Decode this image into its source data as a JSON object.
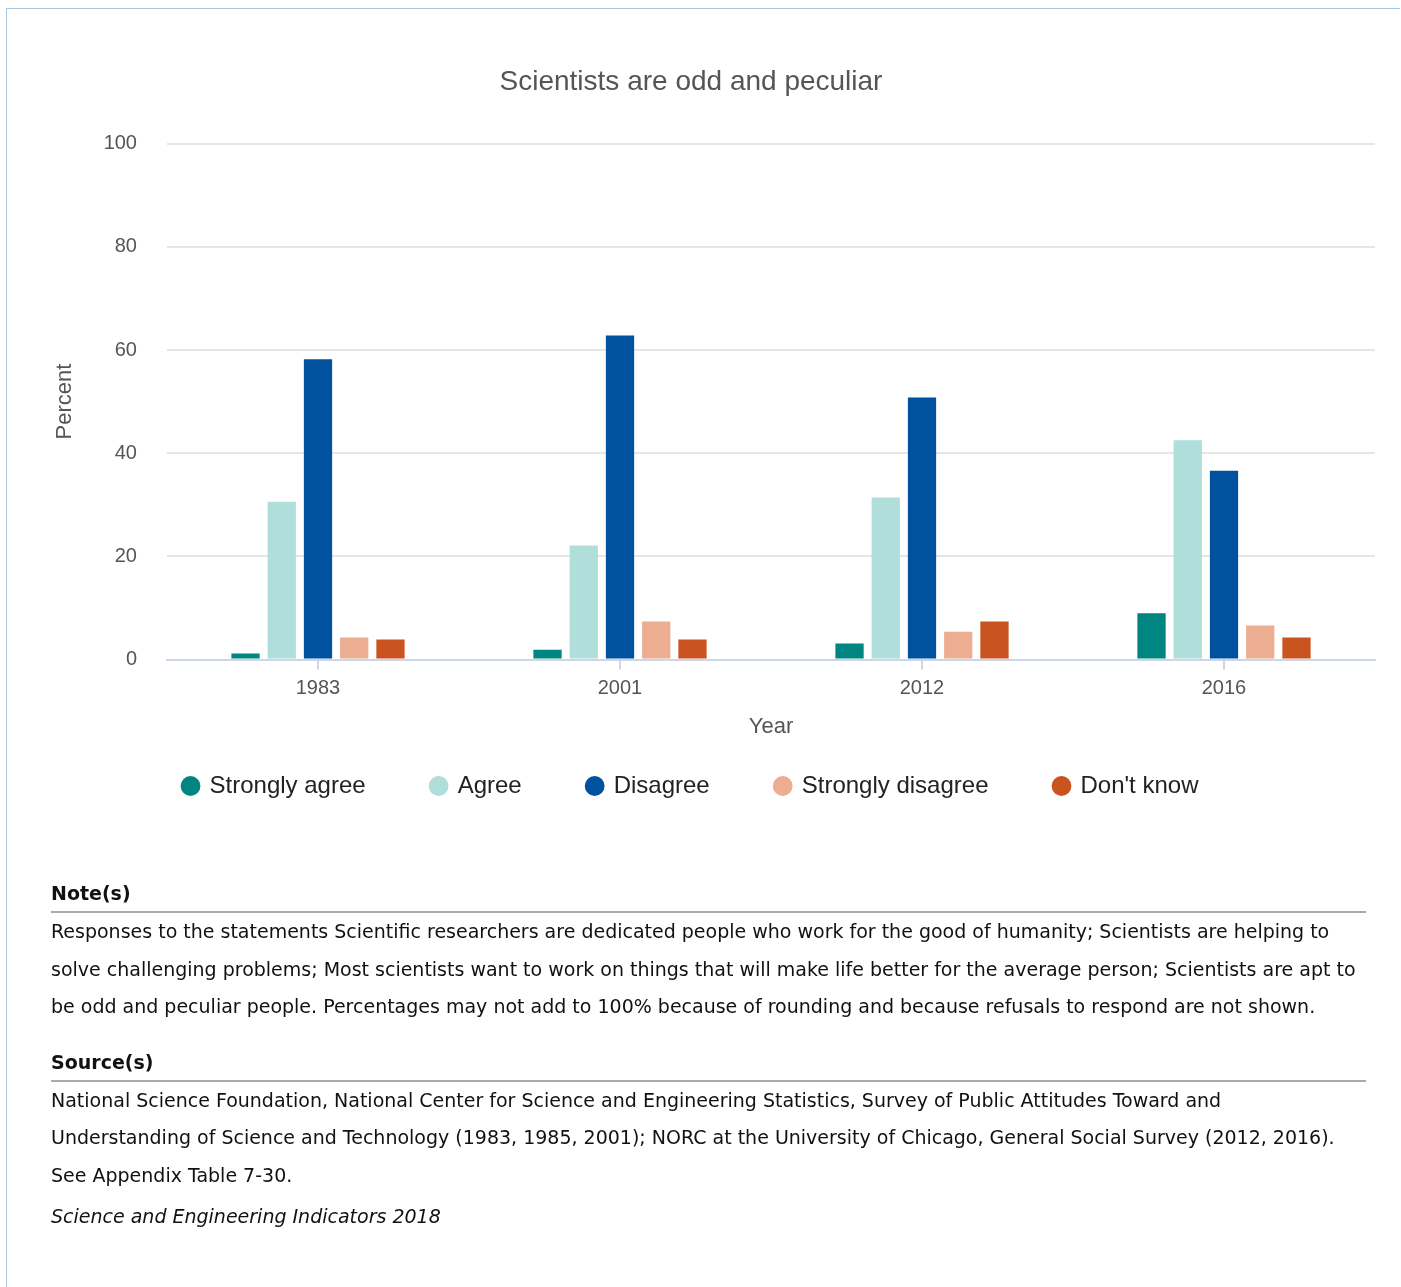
{
  "chart_data": {
    "type": "bar",
    "title": "Scientists are odd and peculiar",
    "xlabel": "Year",
    "ylabel": "Percent",
    "categories": [
      "1983",
      "2001",
      "2012",
      "2016"
    ],
    "series": [
      {
        "name": "Strongly agree",
        "color": "#008580",
        "values": [
          1.2,
          1.9,
          3.1,
          9.0
        ]
      },
      {
        "name": "Agree",
        "color": "#b0deda",
        "values": [
          30.6,
          22.1,
          31.4,
          42.5
        ]
      },
      {
        "name": "Disagree",
        "color": "#00519e",
        "values": [
          58.2,
          62.8,
          50.8,
          36.6
        ]
      },
      {
        "name": "Strongly disagree",
        "color": "#edad91",
        "values": [
          4.3,
          7.4,
          5.4,
          6.6
        ]
      },
      {
        "name": "Don't know",
        "color": "#c95420",
        "values": [
          3.9,
          3.9,
          7.4,
          4.3
        ]
      }
    ],
    "ylim": [
      0,
      100
    ],
    "yticks": [
      0,
      20,
      40,
      60,
      80,
      100
    ],
    "grid": "y",
    "legend": "bottom",
    "annotations": [
      "Note(s)",
      "Responses to the statements Scientific researchers are dedicated people who work for the good of humanity; Scientists are helping to solve challenging problems; Most scientists want to work on things that will make life better for the average person; Scientists are apt to be odd and peculiar people. Percentages may not add to 100% because of rounding and because refusals to respond are not shown.",
      "Source(s)",
      "National Science Foundation, National Center for Science and Engineering Statistics, Survey of Public Attitudes Toward and Understanding of Science and Technology (1983, 1985, 2001); NORC at the University of Chicago, General Social Survey (2012, 2016). See Appendix Table 7-30.",
      "Science and Engineering Indicators 2018"
    ]
  }
}
